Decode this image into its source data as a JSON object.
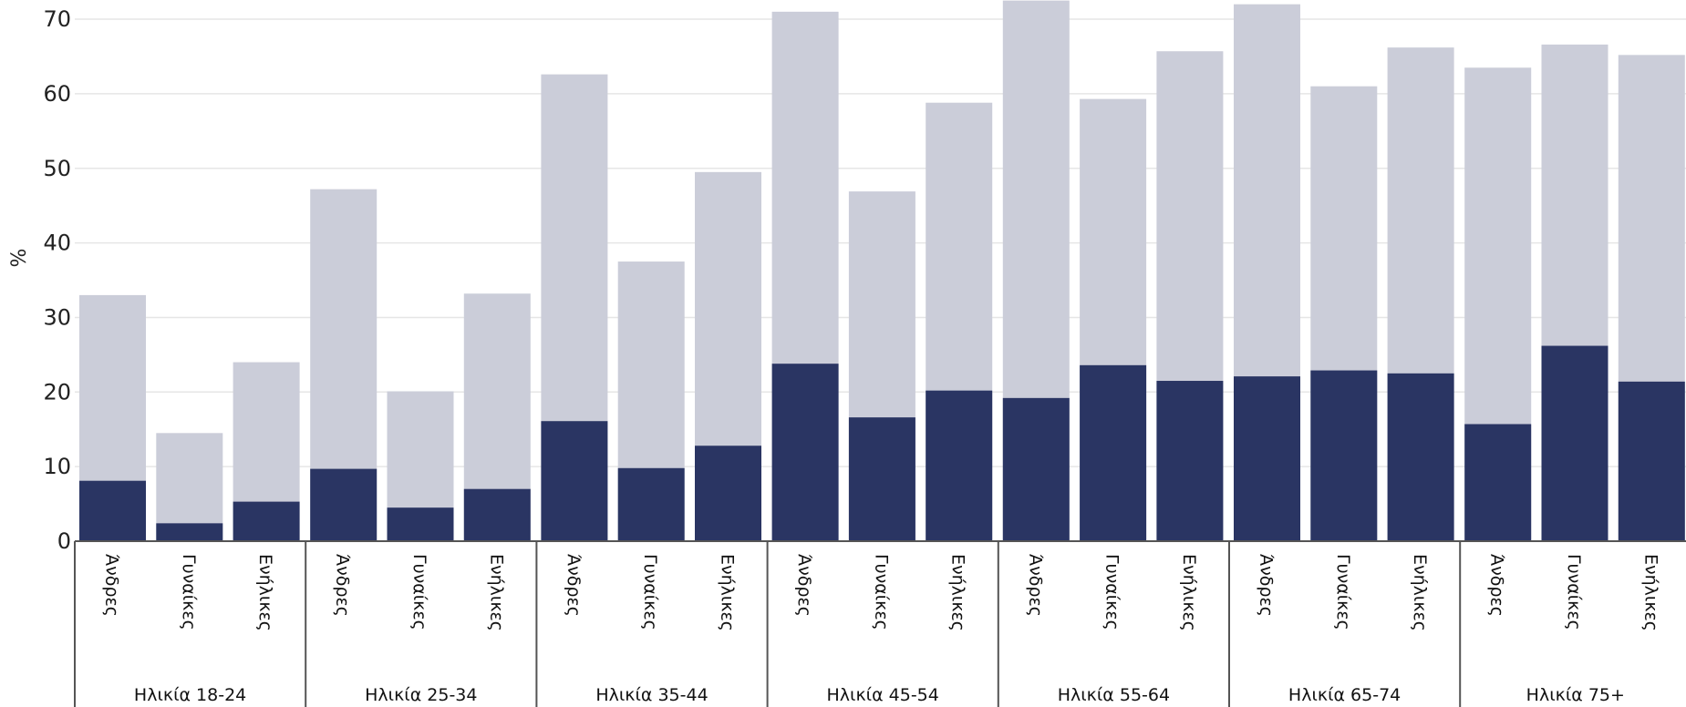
{
  "chart_data": {
    "type": "bar",
    "stacked_overlay": true,
    "title": "",
    "ylabel": "%",
    "xlabel": "",
    "ylim": [
      0,
      72
    ],
    "yticks": [
      0,
      10,
      20,
      30,
      40,
      50,
      60,
      70
    ],
    "grid": true,
    "groups": [
      "Ηλικία 18-24",
      "Ηλικία 25-34",
      "Ηλικία 35-44",
      "Ηλικία 45-54",
      "Ηλικία 55-64",
      "Ηλικία 65-74",
      "Ηλικία 75+"
    ],
    "categories": [
      "Άνδρες",
      "Γυναίκες",
      "Ενήλικες"
    ],
    "colors": {
      "light": "#cbcdd9",
      "dark": "#2a3563",
      "axis": "#555555",
      "grid": "#e6e6e6"
    },
    "series": [
      {
        "values": [
          [
            33.0,
            14.5,
            24.0
          ],
          [
            47.2,
            20.1,
            33.2
          ],
          [
            62.6,
            37.5,
            49.5
          ],
          [
            71.0,
            46.9,
            58.8
          ],
          [
            72.5,
            59.3,
            65.7
          ],
          [
            72.0,
            61.0,
            66.2
          ],
          [
            63.5,
            66.6,
            65.2
          ]
        ]
      },
      {
        "values": [
          [
            8.1,
            2.4,
            5.3
          ],
          [
            9.7,
            4.5,
            7.0
          ],
          [
            16.1,
            9.8,
            12.8
          ],
          [
            23.8,
            16.6,
            20.2
          ],
          [
            19.2,
            23.6,
            21.5
          ],
          [
            22.1,
            22.9,
            22.5
          ],
          [
            15.7,
            26.2,
            21.4
          ]
        ]
      }
    ]
  }
}
